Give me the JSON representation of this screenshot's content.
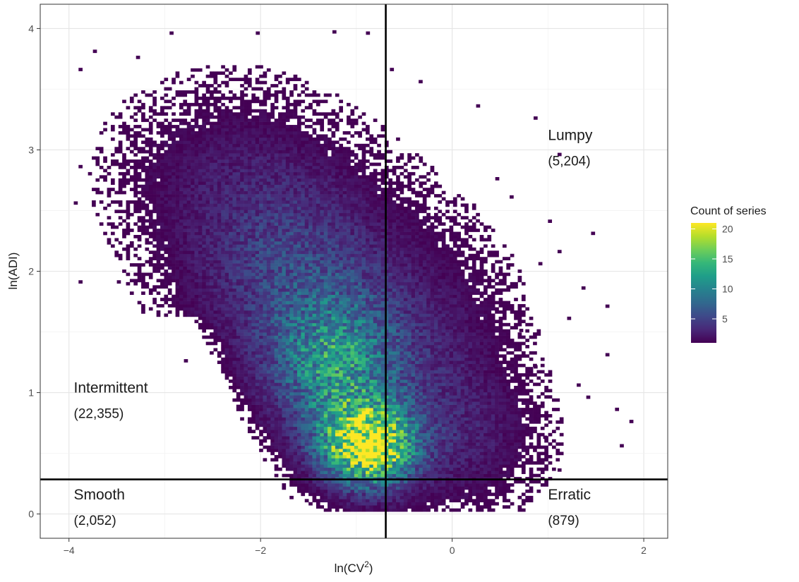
{
  "chart_data": {
    "type": "heatmap",
    "title": "",
    "xlabel": "ln(CV",
    "xlabel_sup": "2",
    "xlabel_close": ")",
    "ylabel": "ln(ADI)",
    "xlim": [
      -4.3,
      2.25
    ],
    "ylim": [
      -0.2,
      4.2
    ],
    "x_ticks": [
      -4,
      -2,
      0,
      2
    ],
    "x_tick_labels": [
      "−4",
      "−2",
      "0",
      "2"
    ],
    "y_ticks": [
      0,
      1,
      2,
      3,
      4
    ],
    "y_tick_labels": [
      "0",
      "1",
      "2",
      "3",
      "4"
    ],
    "grid": true,
    "cutoffs": {
      "x": -0.693,
      "y": 0.285
    },
    "legend": {
      "title": "Count of series",
      "position": "right",
      "range": [
        1,
        21
      ],
      "ticks": [
        5,
        10,
        15,
        20
      ],
      "tick_labels": [
        "5",
        "10",
        "15",
        "20"
      ],
      "colors": [
        "#440154",
        "#482878",
        "#3e4989",
        "#31688e",
        "#26828e",
        "#1f9e89",
        "#35b779",
        "#6ece58",
        "#b5de2b",
        "#fde725"
      ]
    },
    "quadrants": [
      {
        "name": "Lumpy",
        "count": "(5,204)",
        "x": 1.0,
        "y": 3.08
      },
      {
        "name": "Intermittent",
        "count": "(22,355)",
        "x": -3.95,
        "y": 1.0
      },
      {
        "name": "Smooth",
        "count": "(2,052)",
        "x": -3.95,
        "y": 0.12
      },
      {
        "name": "Erratic",
        "count": "(879)",
        "x": 1.0,
        "y": 0.12
      }
    ],
    "density_model": {
      "cells_x": 165,
      "cells_y": 170,
      "cell_width": 0.0397,
      "cell_height": 0.0259,
      "lower_boundary_y": 0.02,
      "clusters": [
        {
          "x": -0.9,
          "y": 0.55,
          "sx": 0.32,
          "sy": 0.22,
          "weight": 21
        },
        {
          "x": -1.25,
          "y": 1.2,
          "sx": 0.45,
          "sy": 0.4,
          "weight": 10
        },
        {
          "x": -1.7,
          "y": 2.0,
          "sx": 0.7,
          "sy": 0.55,
          "weight": 4.5
        },
        {
          "x": -2.4,
          "y": 2.8,
          "sx": 0.8,
          "sy": 0.5,
          "weight": 1.6
        },
        {
          "x": -0.3,
          "y": 1.2,
          "sx": 0.6,
          "sy": 0.7,
          "weight": 2.5
        },
        {
          "x": 0.2,
          "y": 0.6,
          "sx": 0.5,
          "sy": 0.35,
          "weight": 1.5
        }
      ],
      "outliers": [
        [
          -3.9,
          3.65
        ],
        [
          -3.75,
          3.8
        ],
        [
          -3.3,
          3.75
        ],
        [
          -2.95,
          3.95
        ],
        [
          -2.05,
          3.95
        ],
        [
          -1.25,
          3.96
        ],
        [
          -0.9,
          3.95
        ],
        [
          -0.65,
          3.65
        ],
        [
          -0.35,
          3.55
        ],
        [
          0.25,
          3.35
        ],
        [
          0.85,
          3.25
        ],
        [
          1.1,
          2.95
        ],
        [
          -3.9,
          2.85
        ],
        [
          -3.95,
          2.55
        ],
        [
          -3.9,
          1.9
        ],
        [
          -3.5,
          1.9
        ],
        [
          -2.8,
          1.25
        ],
        [
          1.0,
          2.4
        ],
        [
          1.45,
          2.3
        ],
        [
          1.1,
          2.15
        ],
        [
          1.35,
          1.85
        ],
        [
          1.6,
          1.7
        ],
        [
          1.6,
          1.3
        ],
        [
          1.3,
          1.05
        ],
        [
          1.4,
          0.95
        ],
        [
          1.7,
          0.85
        ],
        [
          1.85,
          0.75
        ],
        [
          1.75,
          0.55
        ],
        [
          1.1,
          0.35
        ],
        [
          0.95,
          0.62
        ],
        [
          0.85,
          1.2
        ],
        [
          0.7,
          1.5
        ],
        [
          1.2,
          1.6
        ],
        [
          0.9,
          2.05
        ],
        [
          0.45,
          2.75
        ],
        [
          0.6,
          2.6
        ]
      ]
    }
  }
}
